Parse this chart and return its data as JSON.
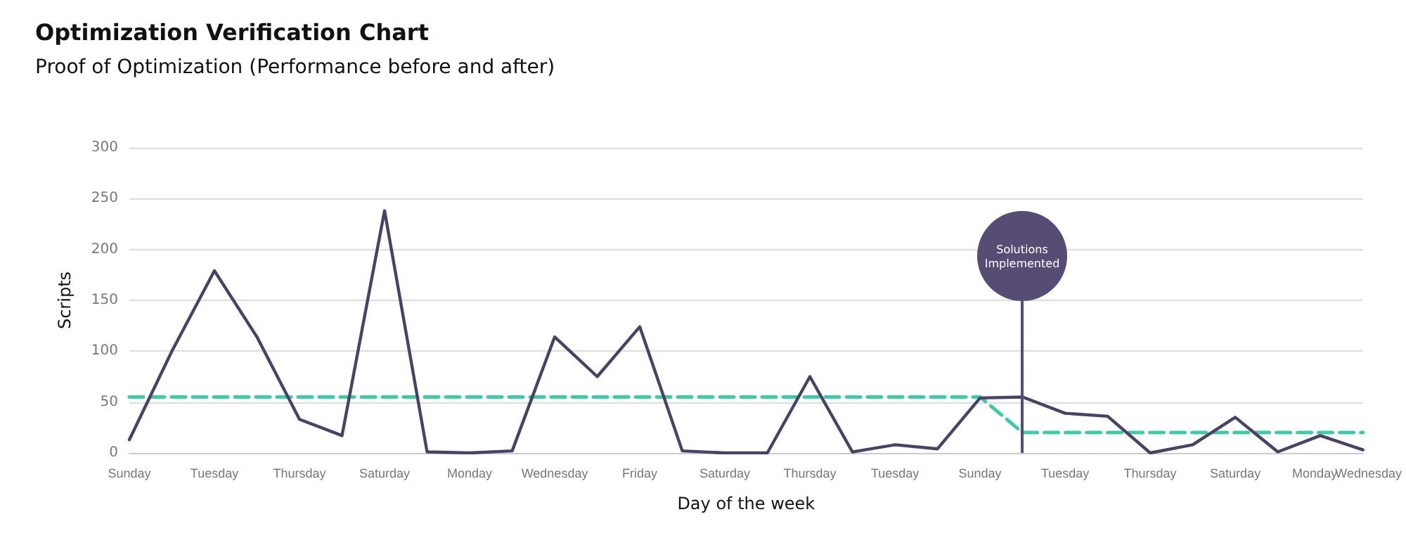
{
  "chart_data": {
    "type": "line",
    "title": "Optimization Verification Chart",
    "subtitle": "Proof of Optimization (Performance before and after)",
    "xlabel": "Day of the week",
    "ylabel": "Scripts",
    "categories": [
      "Sunday",
      null,
      "Tuesday",
      null,
      "Thursday",
      null,
      "Saturday",
      null,
      "Monday",
      null,
      "Wednesday",
      null,
      "Friday",
      null,
      "Saturday",
      null,
      "Thursday",
      null,
      "Tuesday",
      null,
      "Sunday",
      null,
      "Tuesday",
      null,
      "Thursday",
      null,
      "Saturday",
      null,
      "Monday",
      "Wednesday"
    ],
    "series": [
      {
        "color": "#4a4265",
        "line_style": "solid",
        "values": [
          13,
          100,
          179,
          114,
          33,
          17,
          238,
          1,
          0,
          2,
          114,
          75,
          124,
          2,
          0,
          0,
          75,
          1,
          8,
          4,
          54,
          55,
          39,
          36,
          0,
          8,
          35,
          1,
          17,
          3
        ]
      },
      {
        "color": "#3ec9a7",
        "line_style": "dashed",
        "values": [
          55,
          55,
          55,
          55,
          55,
          55,
          55,
          55,
          55,
          55,
          55,
          55,
          55,
          55,
          55,
          55,
          55,
          55,
          55,
          55,
          55,
          20,
          20,
          20,
          20,
          20,
          20,
          20,
          20,
          20
        ]
      }
    ],
    "annotations": [
      "Solutions Implemented"
    ],
    "ylim": [
      0,
      300
    ],
    "yticks": [
      0,
      50,
      100,
      150,
      200,
      250,
      300
    ],
    "grid": "y",
    "marker": "none"
  }
}
